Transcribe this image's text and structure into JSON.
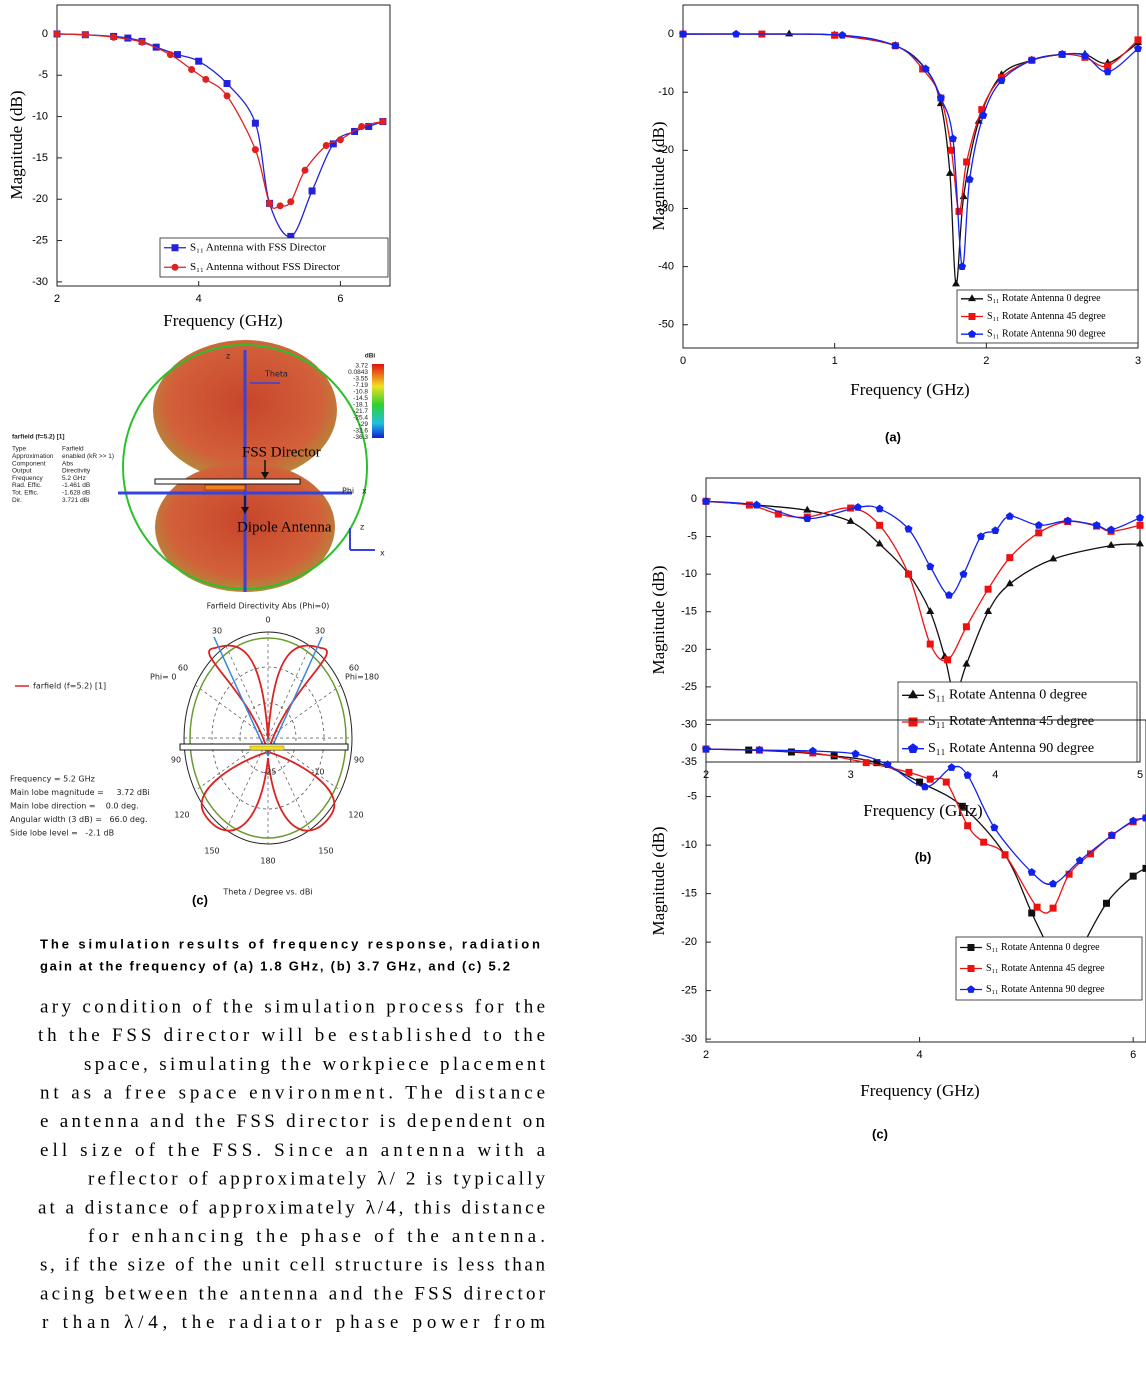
{
  "chart_data": [
    {
      "type": "line",
      "x_label": "Frequency (GHz)",
      "y_label": "Magnitude (dB)",
      "xlim": [
        2,
        6.7
      ],
      "ylim": [
        -30.5,
        3.5
      ],
      "xticks": [
        2,
        4,
        6
      ],
      "yticks": [
        0,
        -5,
        -10,
        -15,
        -20,
        -25,
        -30
      ],
      "legend": "lower right",
      "series": [
        {
          "name": "S₁₁ Antenna with FSS Director",
          "color": "#2222dd",
          "marker": "square",
          "x": [
            2,
            2.4,
            2.8,
            3.0,
            3.2,
            3.4,
            3.7,
            4.0,
            4.4,
            4.8,
            5.0,
            5.3,
            5.6,
            5.9,
            6.2,
            6.4,
            6.6
          ],
          "values": [
            0,
            -0.1,
            -0.3,
            -0.5,
            -0.9,
            -1.6,
            -2.5,
            -3.3,
            -6,
            -10.8,
            -20.5,
            -24.5,
            -19,
            -13.3,
            -11.8,
            -11.2,
            -10.6
          ]
        },
        {
          "name": "S₁₁ Antenna without FSS Director",
          "color": "#dd2222",
          "marker": "circle",
          "x": [
            2,
            2.4,
            2.8,
            3.2,
            3.6,
            3.9,
            4.1,
            4.4,
            4.8,
            5.0,
            5.15,
            5.3,
            5.5,
            5.8,
            6.0,
            6.3,
            6.6
          ],
          "values": [
            0,
            -0.1,
            -0.4,
            -1.0,
            -2.5,
            -4.3,
            -5.5,
            -7.5,
            -14,
            -20.5,
            -20.8,
            -20.3,
            -16.5,
            -13.5,
            -12.8,
            -11.2,
            -10.6
          ]
        }
      ]
    },
    {
      "type": "line",
      "label": "(a)",
      "x_label": "Frequency (GHz)",
      "y_label": "Magnitude (dB)",
      "xlim": [
        0,
        3
      ],
      "ylim": [
        -54,
        5
      ],
      "xticks": [
        0,
        1,
        2,
        3
      ],
      "yticks": [
        0,
        -10,
        -20,
        -30,
        -40,
        -50
      ],
      "legend": "lower right",
      "series": [
        {
          "name": "S₁₁ Rotate Antenna 0 degree",
          "color": "#111111",
          "marker": "triangle",
          "x": [
            0,
            0.7,
            1.0,
            1.4,
            1.6,
            1.7,
            1.76,
            1.8,
            1.85,
            1.95,
            2.1,
            2.3,
            2.5,
            2.65,
            2.8,
            3.0
          ],
          "values": [
            0,
            0,
            -0.2,
            -2,
            -6,
            -12,
            -24,
            -43,
            -28,
            -15,
            -7,
            -4.5,
            -3.5,
            -3.5,
            -5,
            -1.5
          ]
        },
        {
          "name": "S₁₁ Rotate Antenna 45 degree",
          "color": "#ee1111",
          "marker": "square",
          "x": [
            0,
            0.52,
            1.0,
            1.4,
            1.58,
            1.7,
            1.77,
            1.82,
            1.87,
            1.97,
            2.1,
            2.3,
            2.5,
            2.65,
            2.8,
            3.0
          ],
          "values": [
            0,
            0,
            -0.2,
            -2,
            -6,
            -11,
            -20,
            -30.5,
            -22,
            -13,
            -7.5,
            -4.5,
            -3.5,
            -4,
            -5.5,
            -1
          ]
        },
        {
          "name": "S₁₁ Rotate Antenna 90 degree",
          "color": "#1122ee",
          "marker": "pentagon",
          "x": [
            0,
            0.35,
            1.05,
            1.4,
            1.6,
            1.7,
            1.78,
            1.84,
            1.89,
            1.98,
            2.1,
            2.3,
            2.5,
            2.65,
            2.8,
            3.0
          ],
          "values": [
            0,
            0,
            -0.2,
            -2,
            -6,
            -11,
            -18,
            -40,
            -25,
            -14,
            -8,
            -4.5,
            -3.5,
            -3.7,
            -6.5,
            -2.5
          ]
        }
      ]
    },
    {
      "type": "line",
      "label": "(b)",
      "x_label": "Frequency (GHz)",
      "y_label": "Magnitude (dB)",
      "xlim": [
        2,
        5
      ],
      "ylim": [
        -35,
        2.8
      ],
      "xticks": [
        2,
        3,
        4,
        5
      ],
      "yticks": [
        0,
        -5,
        -10,
        -15,
        -20,
        -25,
        -30,
        -35
      ],
      "legend": "lower right",
      "series": [
        {
          "name": "S₁₁ Rotate Antenna 0 degree",
          "color": "#111111",
          "marker": "triangle",
          "x": [
            2,
            2.35,
            2.7,
            3.0,
            3.2,
            3.4,
            3.55,
            3.65,
            3.72,
            3.8,
            3.95,
            4.1,
            4.4,
            4.8,
            5.0
          ],
          "values": [
            -0.3,
            -0.8,
            -1.5,
            -3,
            -6,
            -10,
            -15,
            -21,
            -26,
            -22,
            -15,
            -11.3,
            -8,
            -6.2,
            -6
          ]
        },
        {
          "name": "S₁₁ Rotate Antenna 45 degree",
          "color": "#ee1111",
          "marker": "square",
          "x": [
            2,
            2.3,
            2.5,
            2.7,
            3.0,
            3.2,
            3.4,
            3.55,
            3.67,
            3.8,
            3.95,
            4.1,
            4.3,
            4.5,
            4.7,
            4.8,
            5.0
          ],
          "values": [
            -0.3,
            -0.8,
            -2,
            -2.4,
            -1.2,
            -3.5,
            -10,
            -19.3,
            -21.4,
            -17,
            -12,
            -7.8,
            -4.5,
            -3,
            -3.6,
            -4.3,
            -3.5
          ]
        },
        {
          "name": "S₁₁ Rotate Antenna 90 degree",
          "color": "#1122ee",
          "marker": "pentagon",
          "x": [
            2,
            2.35,
            2.7,
            3.05,
            3.2,
            3.4,
            3.55,
            3.68,
            3.78,
            3.9,
            4.0,
            4.1,
            4.3,
            4.5,
            4.7,
            4.8,
            5.0
          ],
          "values": [
            -0.3,
            -0.8,
            -2.6,
            -1.1,
            -1.3,
            -4,
            -9,
            -12.8,
            -10,
            -5,
            -4.2,
            -2.3,
            -3.5,
            -2.9,
            -3.5,
            -4.1,
            -2.5
          ]
        }
      ]
    },
    {
      "type": "line",
      "label": "(c)",
      "x_label": "Frequency (GHz)",
      "y_label": "Magnitude (dB)",
      "xlim": [
        2,
        6.12
      ],
      "ylim": [
        -30.3,
        2.9
      ],
      "xticks": [
        2,
        4,
        6
      ],
      "yticks": [
        0,
        -5,
        -10,
        -15,
        -20,
        -25,
        -30
      ],
      "legend": "lower right",
      "series": [
        {
          "name": "S₁₁ Rotate Antenna 0 degree",
          "color": "#111111",
          "marker": "square",
          "x": [
            2,
            2.4,
            2.8,
            3.2,
            3.6,
            4.0,
            4.4,
            4.8,
            5.05,
            5.2,
            5.35,
            5.5,
            5.75,
            6.0,
            6.12
          ],
          "values": [
            -0.1,
            -0.2,
            -0.4,
            -0.8,
            -1.5,
            -3.5,
            -6,
            -11,
            -17,
            -20.5,
            -24.6,
            -21,
            -16,
            -13.2,
            -12.4
          ]
        },
        {
          "name": "S₁₁ Rotate Antenna 45 degree",
          "color": "#ee1111",
          "marker": "square",
          "x": [
            2,
            2.5,
            3.0,
            3.5,
            3.9,
            4.1,
            4.25,
            4.45,
            4.6,
            4.8,
            5.1,
            5.25,
            5.4,
            5.6,
            5.8,
            6.0,
            6.12
          ],
          "values": [
            -0.1,
            -0.2,
            -0.5,
            -1.5,
            -2.5,
            -3.2,
            -3.5,
            -8,
            -9.7,
            -11,
            -16.4,
            -16.5,
            -13,
            -10.9,
            -9,
            -7.6,
            -7.2
          ]
        },
        {
          "name": "S₁₁ Rotate Antenna 90 degree",
          "color": "#1122ee",
          "marker": "pentagon",
          "x": [
            2,
            2.5,
            3.0,
            3.4,
            3.7,
            4.05,
            4.3,
            4.45,
            4.7,
            5.05,
            5.25,
            5.5,
            5.8,
            6.0,
            6.12
          ],
          "values": [
            -0.1,
            -0.2,
            -0.3,
            -0.6,
            -1.7,
            -4,
            -2,
            -2.8,
            -8.2,
            -12.8,
            -14,
            -11.6,
            -9,
            -7.5,
            -7.2
          ]
        }
      ]
    }
  ],
  "pattern": {
    "theta": "Theta",
    "fss": "FSS Director",
    "dipole": "Dipole Antenna",
    "phi": "Phi",
    "x": "x",
    "z": "z",
    "axes_z": "z",
    "axes_x": "x",
    "colorbar_unit": "dBi",
    "colorbar": [
      3.72,
      0.0843,
      -3.55,
      -7.19,
      -10.8,
      -14.5,
      -18.1,
      -21.7,
      -25.4,
      -29,
      -32.6,
      -36.3
    ],
    "info_title": "farfield (f=5.2) [1]",
    "info": [
      [
        "Type",
        "Farfield"
      ],
      [
        "Approximation",
        "enabled (kR >> 1)"
      ],
      [
        "Component",
        "Abs"
      ],
      [
        "Output",
        "Directivity"
      ],
      [
        "Frequency",
        "5.2 GHz"
      ],
      [
        "Rad. Effic.",
        "-1.461 dB"
      ],
      [
        "Tot. Effic.",
        "-1.628 dB"
      ],
      [
        "Dir.",
        "3.721 dBi"
      ]
    ]
  },
  "polar": {
    "title": "Farfield Directivity Abs (Phi=0)",
    "legend": "farfield (f=5.2) [1]",
    "phi_left": "Phi=  0",
    "phi_right": "Phi=180",
    "angles": [
      0,
      30,
      30,
      60,
      60,
      90,
      90,
      120,
      120,
      150,
      150,
      180
    ],
    "radial": [
      -25,
      -10
    ],
    "info": [
      "Frequency = 5.2 GHz",
      "Main lobe magnitude =     3.72 dBi",
      "Main lobe direction =    0.0 deg.",
      "Angular width (3 dB) =   66.0 deg.",
      "Side lobe level =   -2.1 dB"
    ],
    "axis_label": "Theta / Degree vs. dBi",
    "label": "(c)"
  },
  "caption": [
    "The simulation results of frequency response, radiation",
    "gain at the frequency of (a) 1.8 GHz, (b) 3.7 GHz, and (c) 5.2"
  ],
  "body": [
    "ary condition of the simulation process for the",
    "th the FSS director will be established to the",
    "space, simulating the workpiece placement",
    "nt as a free space environment. The distance",
    "e antenna and the FSS director is dependent on",
    "ell size of the FSS. Since an antenna with a",
    "reflector of approximately λ/ 2 is typically",
    "at a distance of approximately λ/4, this distance",
    "for enhancing the phase of the antenna.",
    "s, if the size of the unit cell structure is less than",
    "acing between the antenna and the FSS director",
    "r than λ/4, the radiator phase power from"
  ]
}
